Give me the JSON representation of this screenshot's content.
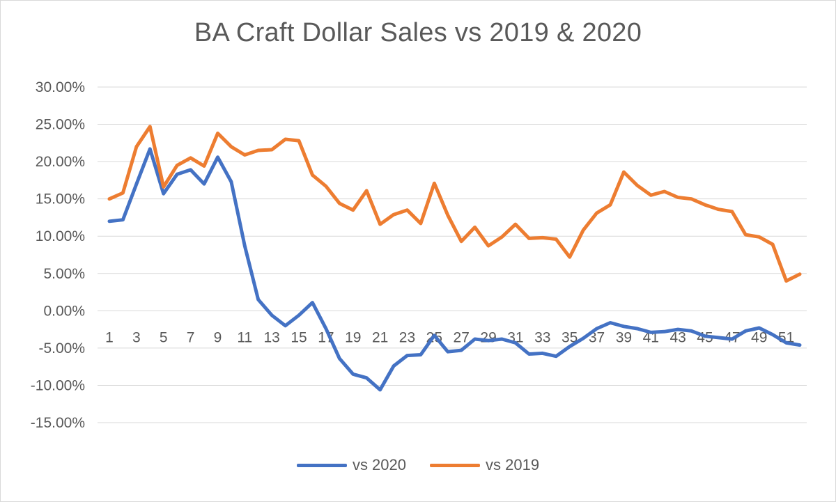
{
  "chart_data": {
    "type": "line",
    "title": "BA Craft Dollar Sales vs 2019 & 2020",
    "xlabel": "",
    "ylabel": "",
    "ylim": [
      -15,
      30
    ],
    "y_ticks": [
      "30.00%",
      "25.00%",
      "20.00%",
      "15.00%",
      "10.00%",
      "5.00%",
      "0.00%",
      "-5.00%",
      "-10.00%",
      "-15.00%"
    ],
    "x": [
      1,
      2,
      3,
      4,
      5,
      6,
      7,
      8,
      9,
      10,
      11,
      12,
      13,
      14,
      15,
      16,
      17,
      18,
      19,
      20,
      21,
      22,
      23,
      24,
      25,
      26,
      27,
      28,
      29,
      30,
      31,
      32,
      33,
      34,
      35,
      36,
      37,
      38,
      39,
      40,
      41,
      42,
      43,
      44,
      45,
      46,
      47,
      48,
      49,
      50,
      51,
      52
    ],
    "x_tick_labels": [
      "1",
      "3",
      "5",
      "7",
      "9",
      "11",
      "13",
      "15",
      "17",
      "19",
      "21",
      "23",
      "25",
      "27",
      "29",
      "31",
      "33",
      "35",
      "37",
      "39",
      "41",
      "43",
      "45",
      "47",
      "49",
      "51"
    ],
    "grid": true,
    "legend_position": "bottom",
    "series": [
      {
        "name": "vs 2020",
        "color": "#4472c4",
        "values": [
          12.0,
          12.2,
          17.0,
          21.7,
          15.7,
          18.3,
          18.9,
          17.0,
          20.6,
          17.3,
          8.7,
          1.5,
          -0.6,
          -2.0,
          -0.6,
          1.1,
          -2.4,
          -6.4,
          -8.5,
          -9.0,
          -10.6,
          -7.4,
          -6.0,
          -5.9,
          -3.3,
          -5.5,
          -5.3,
          -3.8,
          -4.0,
          -3.8,
          -4.3,
          -5.8,
          -5.7,
          -6.1,
          -4.8,
          -3.7,
          -2.4,
          -1.6,
          -2.1,
          -2.4,
          -2.9,
          -2.8,
          -2.5,
          -2.7,
          -3.4,
          -3.6,
          -3.8,
          -2.7,
          -2.3,
          -3.2,
          -4.3,
          -4.6
        ]
      },
      {
        "name": "vs 2019",
        "color": "#ed7d31",
        "values": [
          15.0,
          15.8,
          22.0,
          24.7,
          16.6,
          19.5,
          20.5,
          19.4,
          23.8,
          22.0,
          20.9,
          21.5,
          21.6,
          23.0,
          22.8,
          18.2,
          16.7,
          14.4,
          13.5,
          16.1,
          11.6,
          12.9,
          13.5,
          11.7,
          17.1,
          12.8,
          9.3,
          11.2,
          8.7,
          9.9,
          11.6,
          9.7,
          9.8,
          9.6,
          7.2,
          10.8,
          13.1,
          14.2,
          18.6,
          16.8,
          15.5,
          16.0,
          15.2,
          15.0,
          14.2,
          13.6,
          13.3,
          10.2,
          9.9,
          8.9,
          4.0,
          4.9
        ]
      }
    ]
  }
}
